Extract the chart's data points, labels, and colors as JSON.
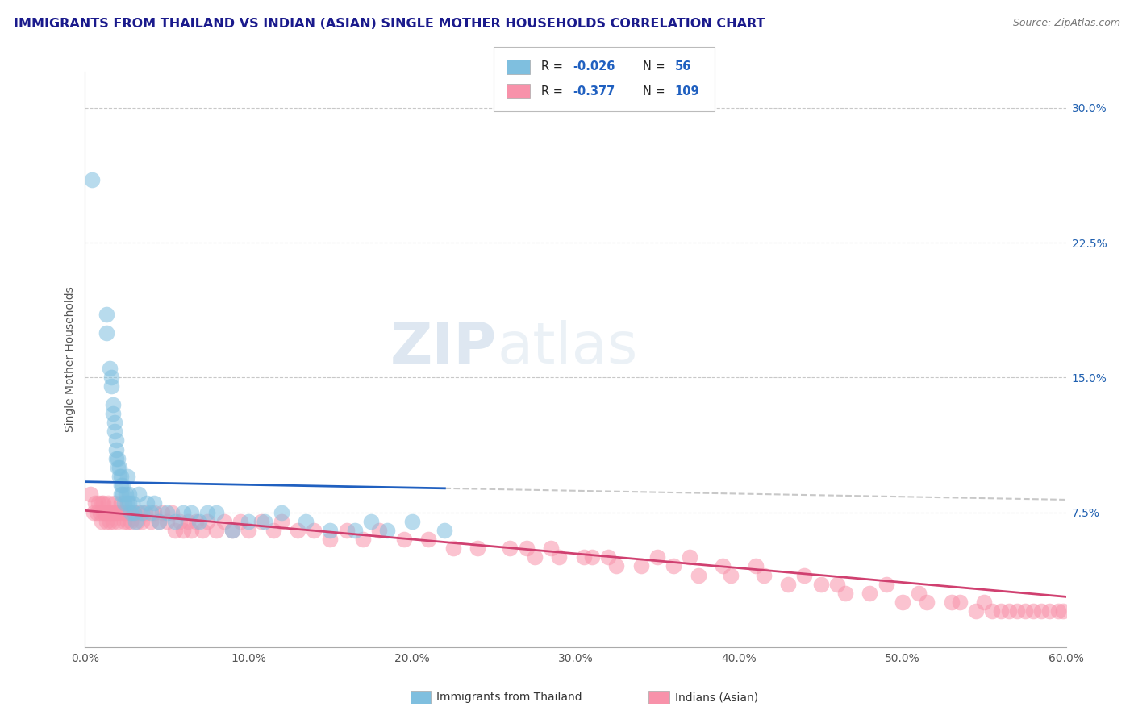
{
  "title": "IMMIGRANTS FROM THAILAND VS INDIAN (ASIAN) SINGLE MOTHER HOUSEHOLDS CORRELATION CHART",
  "source": "Source: ZipAtlas.com",
  "ylabel_label": "Single Mother Households",
  "xlim": [
    0.0,
    0.6
  ],
  "ylim": [
    0.0,
    0.32
  ],
  "yticks_right": [
    0.075,
    0.15,
    0.225,
    0.3
  ],
  "yticklabels_right": [
    "7.5%",
    "15.0%",
    "22.5%",
    "30.0%"
  ],
  "color_thailand": "#7fbfdf",
  "color_india": "#f892aa",
  "color_trendline_thailand": "#2060c0",
  "color_trendline_india": "#d04070",
  "title_color": "#1a1a8c",
  "source_color": "#777777",
  "background_color": "#ffffff",
  "gridline_color": "#c8c8c8",
  "thailand_scatter_x": [
    0.004,
    0.013,
    0.013,
    0.015,
    0.016,
    0.016,
    0.017,
    0.017,
    0.018,
    0.018,
    0.019,
    0.019,
    0.019,
    0.02,
    0.02,
    0.021,
    0.021,
    0.022,
    0.022,
    0.022,
    0.023,
    0.023,
    0.024,
    0.025,
    0.026,
    0.026,
    0.027,
    0.027,
    0.028,
    0.029,
    0.03,
    0.031,
    0.033,
    0.035,
    0.038,
    0.04,
    0.042,
    0.045,
    0.05,
    0.055,
    0.06,
    0.065,
    0.07,
    0.075,
    0.08,
    0.09,
    0.1,
    0.11,
    0.12,
    0.135,
    0.15,
    0.165,
    0.175,
    0.185,
    0.2,
    0.22
  ],
  "thailand_scatter_y": [
    0.26,
    0.185,
    0.175,
    0.155,
    0.15,
    0.145,
    0.13,
    0.135,
    0.12,
    0.125,
    0.11,
    0.115,
    0.105,
    0.1,
    0.105,
    0.095,
    0.1,
    0.09,
    0.095,
    0.085,
    0.09,
    0.085,
    0.08,
    0.085,
    0.08,
    0.095,
    0.08,
    0.085,
    0.075,
    0.08,
    0.075,
    0.07,
    0.085,
    0.075,
    0.08,
    0.075,
    0.08,
    0.07,
    0.075,
    0.07,
    0.075,
    0.075,
    0.07,
    0.075,
    0.075,
    0.065,
    0.07,
    0.07,
    0.075,
    0.07,
    0.065,
    0.065,
    0.07,
    0.065,
    0.07,
    0.065
  ],
  "india_scatter_x": [
    0.003,
    0.005,
    0.006,
    0.007,
    0.008,
    0.009,
    0.01,
    0.01,
    0.011,
    0.011,
    0.012,
    0.013,
    0.013,
    0.014,
    0.015,
    0.015,
    0.016,
    0.017,
    0.018,
    0.018,
    0.019,
    0.02,
    0.021,
    0.022,
    0.023,
    0.024,
    0.025,
    0.026,
    0.027,
    0.028,
    0.03,
    0.032,
    0.033,
    0.035,
    0.037,
    0.04,
    0.042,
    0.045,
    0.047,
    0.05,
    0.053,
    0.055,
    0.058,
    0.06,
    0.063,
    0.065,
    0.068,
    0.072,
    0.075,
    0.08,
    0.085,
    0.09,
    0.095,
    0.1,
    0.108,
    0.115,
    0.12,
    0.13,
    0.14,
    0.15,
    0.16,
    0.17,
    0.18,
    0.195,
    0.21,
    0.225,
    0.24,
    0.26,
    0.275,
    0.29,
    0.31,
    0.325,
    0.34,
    0.36,
    0.375,
    0.395,
    0.415,
    0.43,
    0.45,
    0.465,
    0.48,
    0.5,
    0.515,
    0.53,
    0.545,
    0.555,
    0.565,
    0.575,
    0.585,
    0.59,
    0.595,
    0.598,
    0.35,
    0.37,
    0.39,
    0.41,
    0.44,
    0.46,
    0.49,
    0.51,
    0.535,
    0.55,
    0.56,
    0.57,
    0.58,
    0.27,
    0.285,
    0.305,
    0.32
  ],
  "india_scatter_y": [
    0.085,
    0.075,
    0.08,
    0.075,
    0.08,
    0.075,
    0.08,
    0.07,
    0.075,
    0.08,
    0.075,
    0.07,
    0.075,
    0.08,
    0.075,
    0.07,
    0.075,
    0.07,
    0.075,
    0.08,
    0.075,
    0.07,
    0.075,
    0.08,
    0.075,
    0.07,
    0.075,
    0.07,
    0.075,
    0.07,
    0.075,
    0.07,
    0.075,
    0.07,
    0.075,
    0.07,
    0.075,
    0.07,
    0.075,
    0.07,
    0.075,
    0.065,
    0.07,
    0.065,
    0.07,
    0.065,
    0.07,
    0.065,
    0.07,
    0.065,
    0.07,
    0.065,
    0.07,
    0.065,
    0.07,
    0.065,
    0.07,
    0.065,
    0.065,
    0.06,
    0.065,
    0.06,
    0.065,
    0.06,
    0.06,
    0.055,
    0.055,
    0.055,
    0.05,
    0.05,
    0.05,
    0.045,
    0.045,
    0.045,
    0.04,
    0.04,
    0.04,
    0.035,
    0.035,
    0.03,
    0.03,
    0.025,
    0.025,
    0.025,
    0.02,
    0.02,
    0.02,
    0.02,
    0.02,
    0.02,
    0.02,
    0.02,
    0.05,
    0.05,
    0.045,
    0.045,
    0.04,
    0.035,
    0.035,
    0.03,
    0.025,
    0.025,
    0.02,
    0.02,
    0.02,
    0.055,
    0.055,
    0.05,
    0.05
  ],
  "trend_thailand_x0": 0.0,
  "trend_thailand_x1": 0.6,
  "trend_thailand_y0": 0.092,
  "trend_thailand_y1": 0.082,
  "trend_india_x0": 0.0,
  "trend_india_x1": 0.6,
  "trend_india_y0": 0.076,
  "trend_india_y1": 0.028,
  "solid_cutoff_thailand": 0.22,
  "solid_cutoff_india": 0.6
}
